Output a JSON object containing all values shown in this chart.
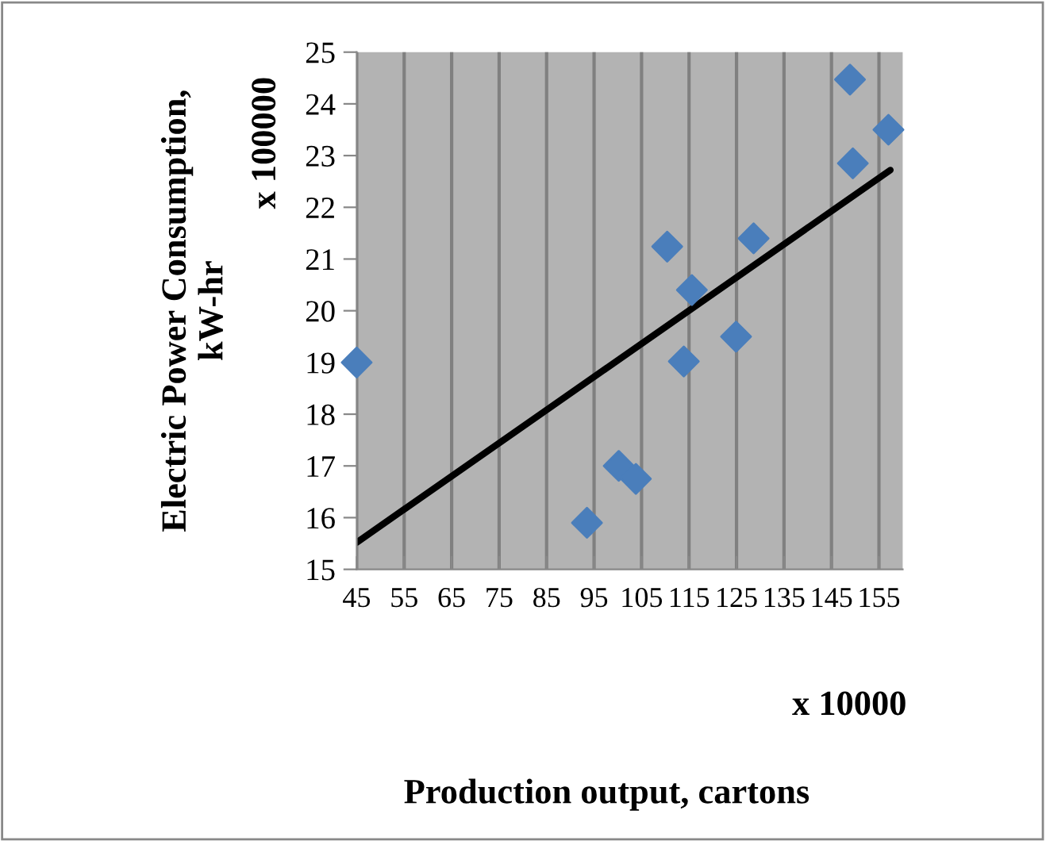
{
  "chart_data": {
    "type": "scatter",
    "xlabel": "Production output, cartons",
    "ylabel": "Electric Power Consumption,\nkW-hr",
    "annotations": [
      "x 10000",
      "x 100000"
    ],
    "series": [
      {
        "color": "#4a7ebb",
        "marker": "diamond",
        "x": [
          45,
          93.5,
          100.2,
          103.8,
          110.4,
          113.9,
          115.6,
          124.9,
          128.6,
          148.9,
          149.5,
          157.0
        ],
        "values": [
          19.0,
          15.9,
          17.0,
          16.75,
          21.24,
          19.02,
          20.4,
          19.5,
          21.4,
          24.47,
          22.85,
          23.5
        ]
      },
      {
        "type": "line",
        "color": "#000000",
        "marker": "none",
        "x": [
          45,
          157.4
        ],
        "values": [
          15.52,
          22.72
        ]
      }
    ],
    "xlim": [
      45,
      160
    ],
    "xticks": [
      45,
      55,
      65,
      75,
      85,
      95,
      105,
      115,
      125,
      135,
      145,
      155
    ],
    "ylim": [
      15,
      25
    ],
    "yticks": [
      15,
      16,
      17,
      18,
      19,
      20,
      21,
      22,
      23,
      24,
      25
    ],
    "grid": "x",
    "legend": false
  }
}
